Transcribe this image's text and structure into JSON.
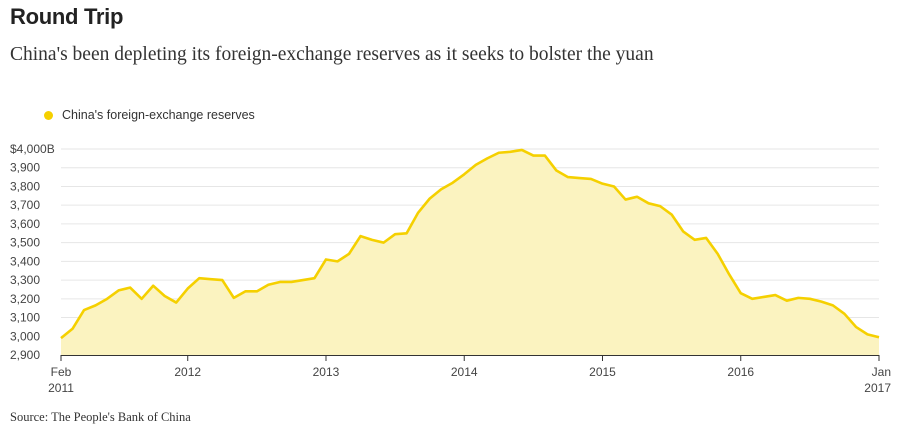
{
  "title": "Round Trip",
  "subtitle": "China's been depleting its foreign-exchange reserves as it seeks to bolster the yuan",
  "source": "Source: The People's Bank of China",
  "colors": {
    "line": "#f5d000",
    "area": "#fbf3c0",
    "grid": "#e6e6e6",
    "axis": "#333333"
  },
  "chart_data": {
    "type": "area",
    "title": "Round Trip",
    "subtitle": "China's been depleting its foreign-exchange reserves as it seeks to bolster the yuan",
    "xlabel": "",
    "ylabel": "",
    "legend": {
      "position": "top-left",
      "entries": [
        "China's foreign-exchange reserves"
      ]
    },
    "grid": true,
    "ylim": [
      2900,
      4000
    ],
    "x_tick_labels": [
      {
        "x": "2011-02",
        "line1": "Feb",
        "line2": "2011"
      },
      {
        "x": "2012-01",
        "line1": "2012",
        "line2": ""
      },
      {
        "x": "2013-01",
        "line1": "2013",
        "line2": ""
      },
      {
        "x": "2014-01",
        "line1": "2014",
        "line2": ""
      },
      {
        "x": "2015-01",
        "line1": "2015",
        "line2": ""
      },
      {
        "x": "2016-01",
        "line1": "2016",
        "line2": ""
      },
      {
        "x": "2017-01",
        "line1": "Jan",
        "line2": "2017"
      }
    ],
    "y_tick_labels": [
      "$4,000B",
      "3,900",
      "3,800",
      "3,700",
      "3,600",
      "3,500",
      "3,400",
      "3,300",
      "3,200",
      "3,100",
      "3,000",
      "2,900"
    ],
    "y_ticks": [
      4000,
      3900,
      3800,
      3700,
      3600,
      3500,
      3400,
      3300,
      3200,
      3100,
      3000,
      2900
    ],
    "series": [
      {
        "name": "China's foreign-exchange reserves",
        "x": [
          "2011-02",
          "2011-03",
          "2011-04",
          "2011-05",
          "2011-06",
          "2011-07",
          "2011-08",
          "2011-09",
          "2011-10",
          "2011-11",
          "2011-12",
          "2012-01",
          "2012-02",
          "2012-03",
          "2012-04",
          "2012-05",
          "2012-06",
          "2012-07",
          "2012-08",
          "2012-09",
          "2012-10",
          "2012-11",
          "2012-12",
          "2013-01",
          "2013-02",
          "2013-03",
          "2013-04",
          "2013-05",
          "2013-06",
          "2013-07",
          "2013-08",
          "2013-09",
          "2013-10",
          "2013-11",
          "2013-12",
          "2014-01",
          "2014-02",
          "2014-03",
          "2014-04",
          "2014-05",
          "2014-06",
          "2014-07",
          "2014-08",
          "2014-09",
          "2014-10",
          "2014-11",
          "2014-12",
          "2015-01",
          "2015-02",
          "2015-03",
          "2015-04",
          "2015-05",
          "2015-06",
          "2015-07",
          "2015-08",
          "2015-09",
          "2015-10",
          "2015-11",
          "2015-12",
          "2016-01",
          "2016-02",
          "2016-03",
          "2016-04",
          "2016-05",
          "2016-06",
          "2016-07",
          "2016-08",
          "2016-09",
          "2016-10",
          "2016-11",
          "2016-12",
          "2017-01"
        ],
        "values": [
          2990,
          3040,
          3140,
          3165,
          3200,
          3245,
          3260,
          3200,
          3270,
          3215,
          3180,
          3255,
          3310,
          3305,
          3300,
          3205,
          3240,
          3240,
          3275,
          3290,
          3290,
          3300,
          3310,
          3410,
          3400,
          3440,
          3535,
          3515,
          3500,
          3545,
          3550,
          3660,
          3735,
          3785,
          3820,
          3865,
          3915,
          3950,
          3980,
          3985,
          3995,
          3965,
          3965,
          3885,
          3850,
          3845,
          3840,
          3815,
          3800,
          3730,
          3745,
          3710,
          3695,
          3650,
          3560,
          3515,
          3525,
          3440,
          3330,
          3230,
          3200,
          3210,
          3220,
          3190,
          3205,
          3200,
          3185,
          3165,
          3120,
          3050,
          3010,
          2995
        ]
      }
    ]
  }
}
